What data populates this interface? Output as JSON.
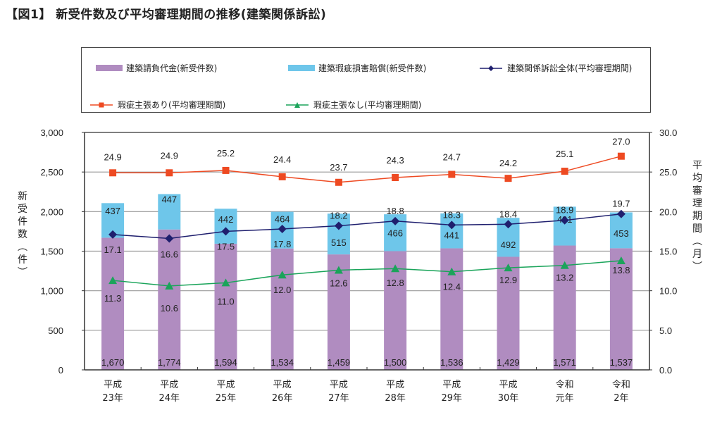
{
  "title": "【図1】 新受件数及び平均審理期間の推移(建築関係訴訟)",
  "chart_data": {
    "type": "bar",
    "title": "【図1】 新受件数及び平均審理期間の推移(建築関係訴訟)",
    "categories": [
      [
        "平成",
        "23年"
      ],
      [
        "平成",
        "24年"
      ],
      [
        "平成",
        "25年"
      ],
      [
        "平成",
        "26年"
      ],
      [
        "平成",
        "27年"
      ],
      [
        "平成",
        "28年"
      ],
      [
        "平成",
        "29年"
      ],
      [
        "平成",
        "30年"
      ],
      [
        "令和",
        "元年"
      ],
      [
        "令和",
        "2年"
      ]
    ],
    "ylabel_left": "新受件数(件)",
    "ylabel_right": "平均審理期間(月)",
    "ylim_left": [
      0,
      3000
    ],
    "ylim_right": [
      0,
      30
    ],
    "yticks_left": [
      "0",
      "500",
      "1,000",
      "1,500",
      "2,000",
      "2,500",
      "3,000"
    ],
    "yticks_right": [
      "0.0",
      "5.0",
      "10.0",
      "15.0",
      "20.0",
      "25.0",
      "30.0"
    ],
    "grid": true,
    "legend_position": "top",
    "bar_series": [
      {
        "name": "建築請負代金(新受件数)",
        "color": "#b08cc0",
        "stacked": true,
        "values": [
          1670,
          1774,
          1594,
          1534,
          1459,
          1500,
          1536,
          1429,
          1571,
          1537
        ],
        "labels": [
          "1,670",
          "1,774",
          "1,594",
          "1,534",
          "1,459",
          "1,500",
          "1,536",
          "1,429",
          "1,571",
          "1,537"
        ]
      },
      {
        "name": "建築瑕疵損害賠償(新受件数)",
        "color": "#6ec6ea",
        "stacked": true,
        "values": [
          437,
          447,
          442,
          464,
          515,
          466,
          441,
          492,
          491,
          453
        ],
        "labels": [
          "437",
          "447",
          "442",
          "464",
          "515",
          "466",
          "441",
          "492",
          "491",
          "453"
        ]
      }
    ],
    "line_series": [
      {
        "name": "建築関係訴訟全体(平均審理期間)",
        "color": "#1f1f6e",
        "marker": "diamond",
        "axis": "right",
        "values": [
          17.1,
          16.6,
          17.5,
          17.8,
          18.2,
          18.8,
          18.3,
          18.4,
          18.9,
          19.7
        ],
        "labels": [
          "17.1",
          "16.6",
          "17.5",
          "17.8",
          "18.2",
          "18.8",
          "18.3",
          "18.4",
          "18.9",
          "19.7"
        ]
      },
      {
        "name": "瑕疵主張あり(平均審理期間)",
        "color": "#ee4a22",
        "marker": "square",
        "axis": "right",
        "values": [
          24.9,
          24.9,
          25.2,
          24.4,
          23.7,
          24.3,
          24.7,
          24.2,
          25.1,
          27.0
        ],
        "labels": [
          "24.9",
          "24.9",
          "25.2",
          "24.4",
          "23.7",
          "24.3",
          "24.7",
          "24.2",
          "25.1",
          "27.0"
        ]
      },
      {
        "name": "瑕疵主張なし(平均審理期間)",
        "color": "#1aa45a",
        "marker": "triangle",
        "axis": "right",
        "values": [
          11.3,
          10.6,
          11.0,
          12.0,
          12.6,
          12.8,
          12.4,
          12.9,
          13.2,
          13.8
        ],
        "labels": [
          "11.3",
          "10.6",
          "11.0",
          "12.0",
          "12.6",
          "12.8",
          "12.4",
          "12.9",
          "13.2",
          "13.8"
        ]
      }
    ]
  }
}
